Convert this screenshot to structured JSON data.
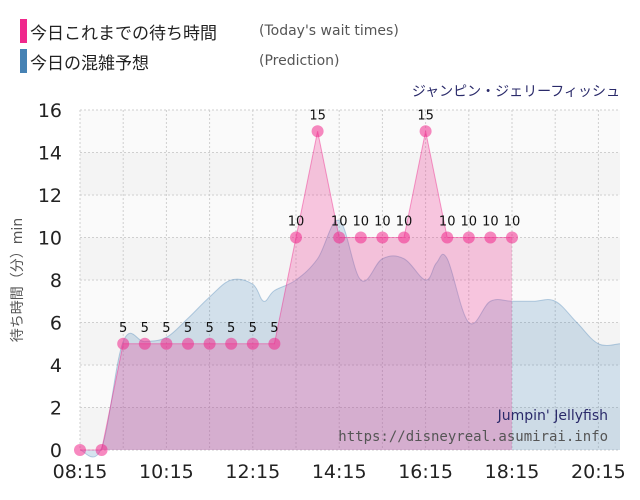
{
  "legend": [
    {
      "label": "今日これまでの待ち時間",
      "note": "(Today's wait times)",
      "color": "#f0288c"
    },
    {
      "label": "今日の混雑予想",
      "note": "(Prediction)",
      "color": "#4682b4"
    }
  ],
  "chart_data": {
    "type": "area",
    "title": "ジャンピン・ジェリーフィッシュ",
    "watermark_name": "Jumpin' Jellyfish",
    "watermark_url": "https://disneyreal.asumirai.info",
    "ylabel": "待ち時間（分）min",
    "xlabel": "",
    "ylim": [
      0,
      16
    ],
    "yticks": [
      0,
      2,
      4,
      6,
      8,
      10,
      12,
      14,
      16
    ],
    "xlim": [
      "08:15",
      "20:45"
    ],
    "xticks": [
      "08:15",
      "10:15",
      "12:15",
      "14:15",
      "16:15",
      "18:15",
      "20:15"
    ],
    "grid": true,
    "series": [
      {
        "name": "今日これまでの待ち時間",
        "color": "#f0288c",
        "points": [
          [
            "08:15",
            0
          ],
          [
            "08:45",
            0
          ],
          [
            "09:15",
            5
          ],
          [
            "09:45",
            5
          ],
          [
            "10:15",
            5
          ],
          [
            "10:45",
            5
          ],
          [
            "11:15",
            5
          ],
          [
            "11:45",
            5
          ],
          [
            "12:15",
            5
          ],
          [
            "12:45",
            5
          ],
          [
            "13:15",
            10
          ],
          [
            "13:45",
            15
          ],
          [
            "14:15",
            10
          ],
          [
            "14:45",
            10
          ],
          [
            "15:15",
            10
          ],
          [
            "15:45",
            10
          ],
          [
            "16:15",
            15
          ],
          [
            "16:45",
            10
          ],
          [
            "17:15",
            10
          ],
          [
            "17:45",
            10
          ],
          [
            "18:15",
            10
          ]
        ],
        "labels": [
          "",
          "",
          "5",
          "5",
          "5",
          "5",
          "5",
          "5",
          "5",
          "5",
          "10",
          "15",
          "10",
          "10",
          "10",
          "10",
          "15",
          "10",
          "10",
          "10",
          "10"
        ]
      },
      {
        "name": "今日の混雑予想",
        "color": "#4682b4",
        "points": [
          [
            "08:15",
            0
          ],
          [
            "08:45",
            0.1
          ],
          [
            "09:15",
            5.1
          ],
          [
            "09:45",
            5.1
          ],
          [
            "10:15",
            5.3
          ],
          [
            "10:45",
            6.2
          ],
          [
            "11:15",
            7.2
          ],
          [
            "11:45",
            8.0
          ],
          [
            "12:15",
            7.8
          ],
          [
            "12:30",
            7.0
          ],
          [
            "12:45",
            7.5
          ],
          [
            "13:15",
            8.0
          ],
          [
            "13:45",
            9.0
          ],
          [
            "14:15",
            10.8
          ],
          [
            "14:45",
            8.0
          ],
          [
            "15:15",
            9.0
          ],
          [
            "15:45",
            9.0
          ],
          [
            "16:15",
            8.0
          ],
          [
            "16:30",
            8.8
          ],
          [
            "16:45",
            9.0
          ],
          [
            "17:15",
            6.0
          ],
          [
            "17:45",
            7.0
          ],
          [
            "18:15",
            7.0
          ],
          [
            "18:45",
            7.0
          ],
          [
            "19:15",
            7.0
          ],
          [
            "19:45",
            6.0
          ],
          [
            "20:15",
            5.0
          ],
          [
            "20:45",
            5.0
          ]
        ]
      }
    ]
  }
}
